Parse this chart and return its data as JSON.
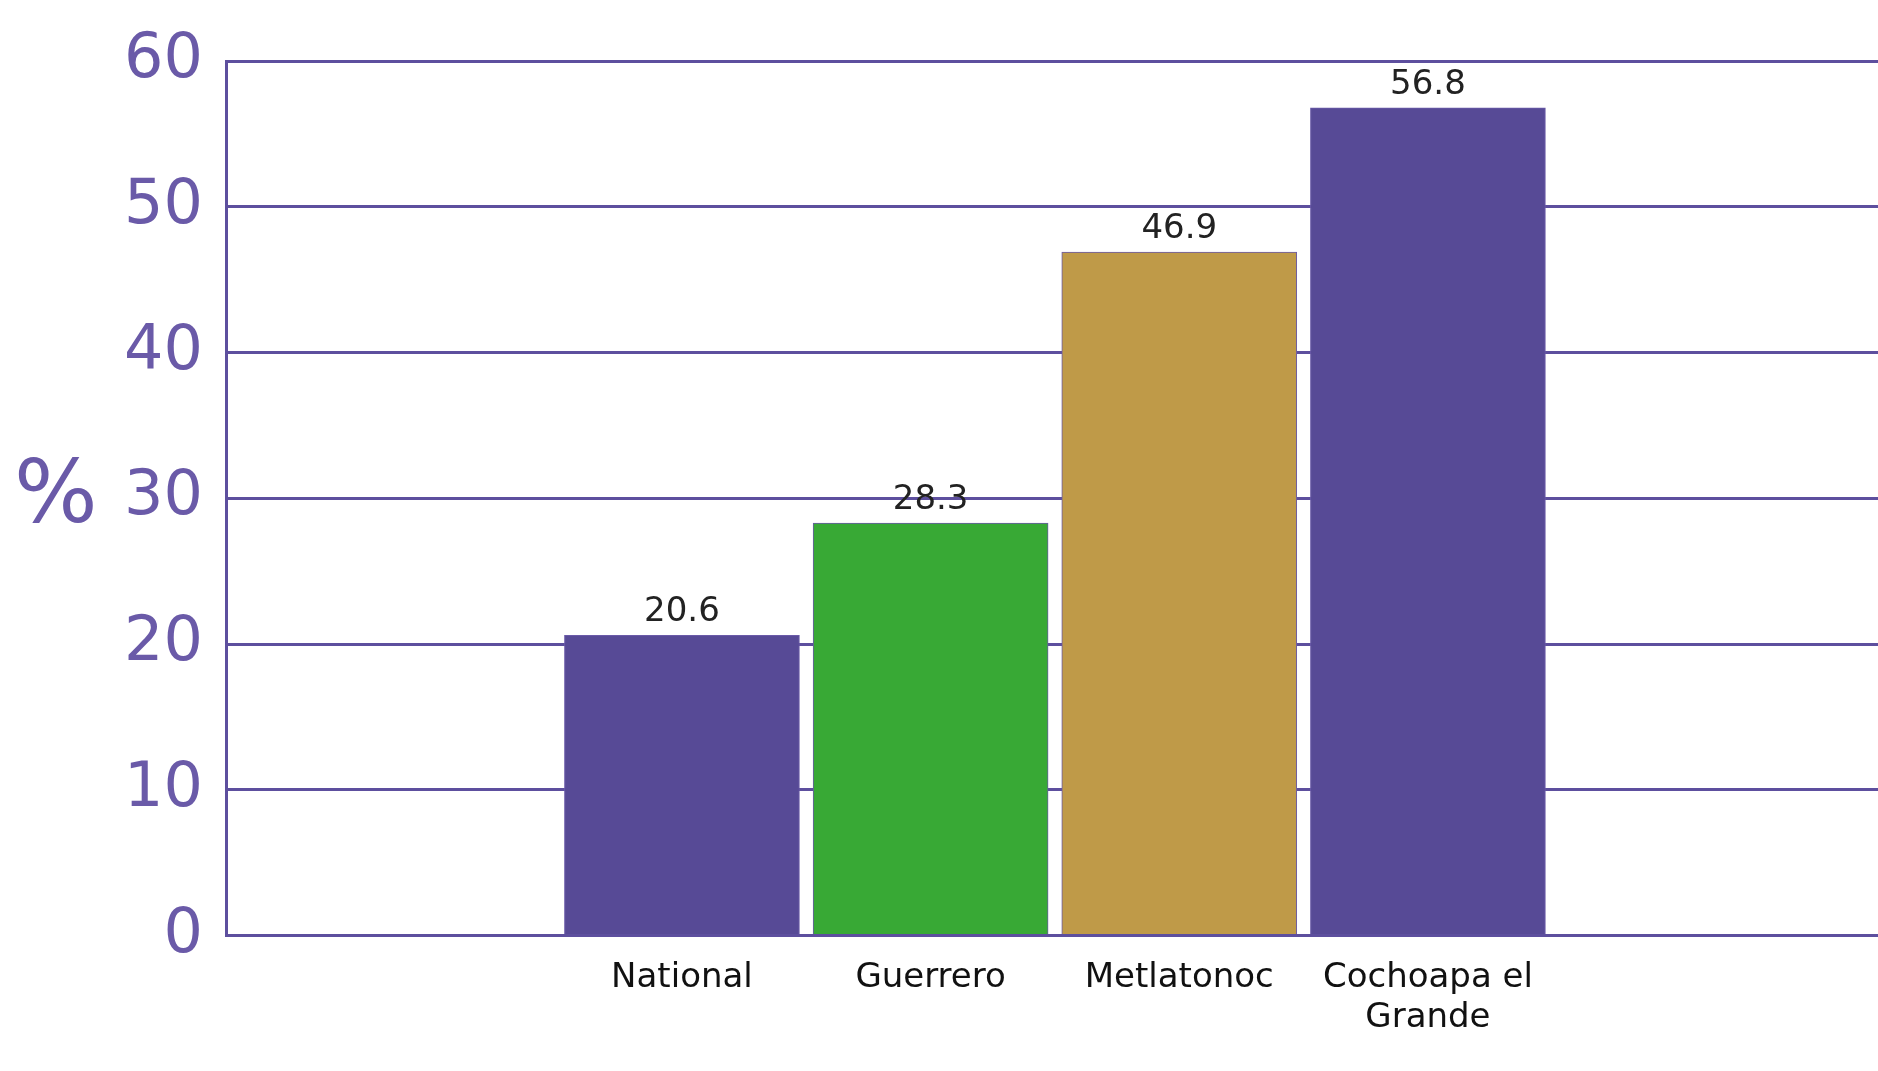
{
  "chart_data": {
    "type": "bar",
    "ylabel": "%",
    "categories": [
      "National",
      "Guerrero",
      "Metlatonoc",
      "Cochoapa el Grande"
    ],
    "values": [
      20.6,
      28.3,
      46.9,
      56.8
    ],
    "colors": [
      "#574a96",
      "#38a935",
      "#bf9a48",
      "#574a96"
    ],
    "ylim": [
      0,
      60
    ],
    "yticks": [
      0,
      10,
      20,
      30,
      40,
      50,
      60
    ],
    "grid": "y",
    "data_labels": true
  }
}
